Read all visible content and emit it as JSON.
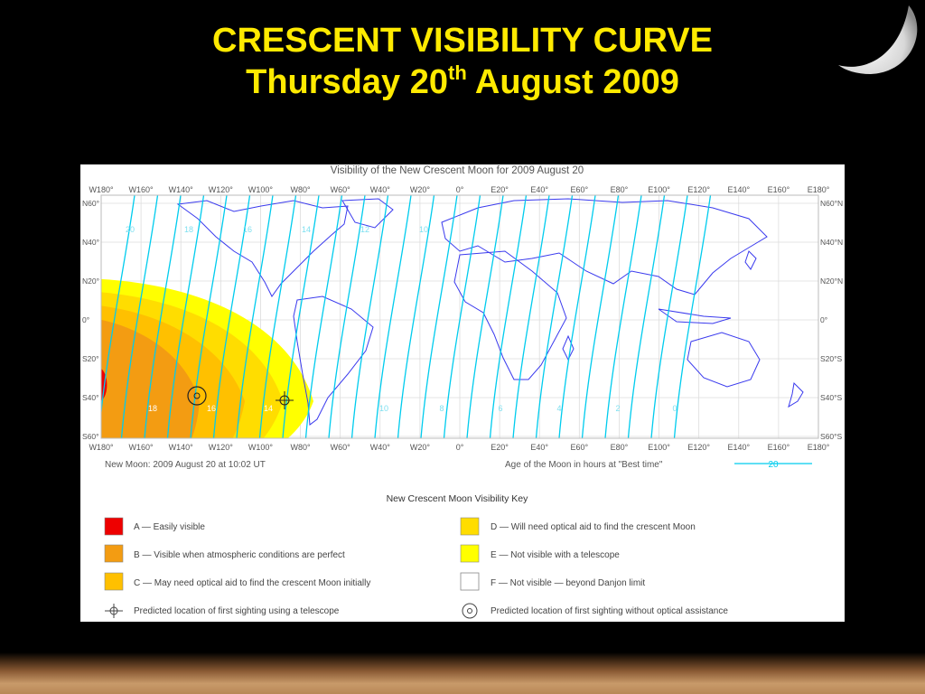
{
  "slide": {
    "title_line1": "CRESCENT  VISIBILITY  CURVE",
    "title_line2_prefix": "Thursday 20",
    "title_line2_sup": "th",
    "title_line2_suffix": " August 2009"
  },
  "map": {
    "title": "Visibility of the New Crescent Moon for 2009 August 20",
    "longitude_labels": [
      "W180°",
      "W160°",
      "W140°",
      "W120°",
      "W100°",
      "W80°",
      "W60°",
      "W40°",
      "W20°",
      "0°",
      "E20°",
      "E40°",
      "E60°",
      "E80°",
      "E100°",
      "E120°",
      "E140°",
      "E160°",
      "E180°"
    ],
    "latitude_labels_left": [
      "N60°",
      "N40°",
      "N20°",
      "0°",
      "S20°",
      "S40°",
      "S60°"
    ],
    "latitude_labels_right": [
      "N60°N",
      "N40°N",
      "N20°N",
      "0°",
      "S20°S",
      "S40°S",
      "S60°S"
    ],
    "new_moon_text": "New Moon: 2009 August 20 at 10:02 UT",
    "age_caption": "Age of the Moon in hours at \"Best time\"",
    "age_sample": "20",
    "curve_labels_top": [
      "20",
      "18",
      "16",
      "14",
      "12",
      "10"
    ],
    "curve_labels_bottom": [
      "18",
      "16",
      "14",
      "10",
      "8",
      "6",
      "4",
      "2",
      "0"
    ]
  },
  "key": {
    "title": "New Crescent Moon Visibility Key",
    "items": [
      {
        "swatch": "#ee0000",
        "label": "A — Easily visible"
      },
      {
        "swatch": "#f39c12",
        "label": "B — Visible when atmospheric conditions are perfect"
      },
      {
        "swatch": "#ffc000",
        "label": "C — May need optical aid to find the crescent Moon initially"
      },
      {
        "swatch": "#ffdd00",
        "label": "D — Will need optical aid to find the crescent Moon"
      },
      {
        "swatch": "#ffff00",
        "label": "E — Not visible with a telescope"
      },
      {
        "swatch": "#ffffff",
        "label": "F — Not visible — beyond Danjon limit"
      }
    ],
    "telescope_marker_label": "Predicted location of first sighting using a telescope",
    "naked_eye_marker_label": "Predicted location of first sighting without optical assistance"
  },
  "colors": {
    "title_yellow": "#ffea00",
    "curve_cyan": "#00ccee",
    "coastline_blue": "#3a3aee",
    "zone_a": "#ee0000",
    "zone_b": "#f39c12",
    "zone_c": "#ffc000",
    "zone_d": "#ffdd00",
    "zone_e": "#ffff00"
  }
}
